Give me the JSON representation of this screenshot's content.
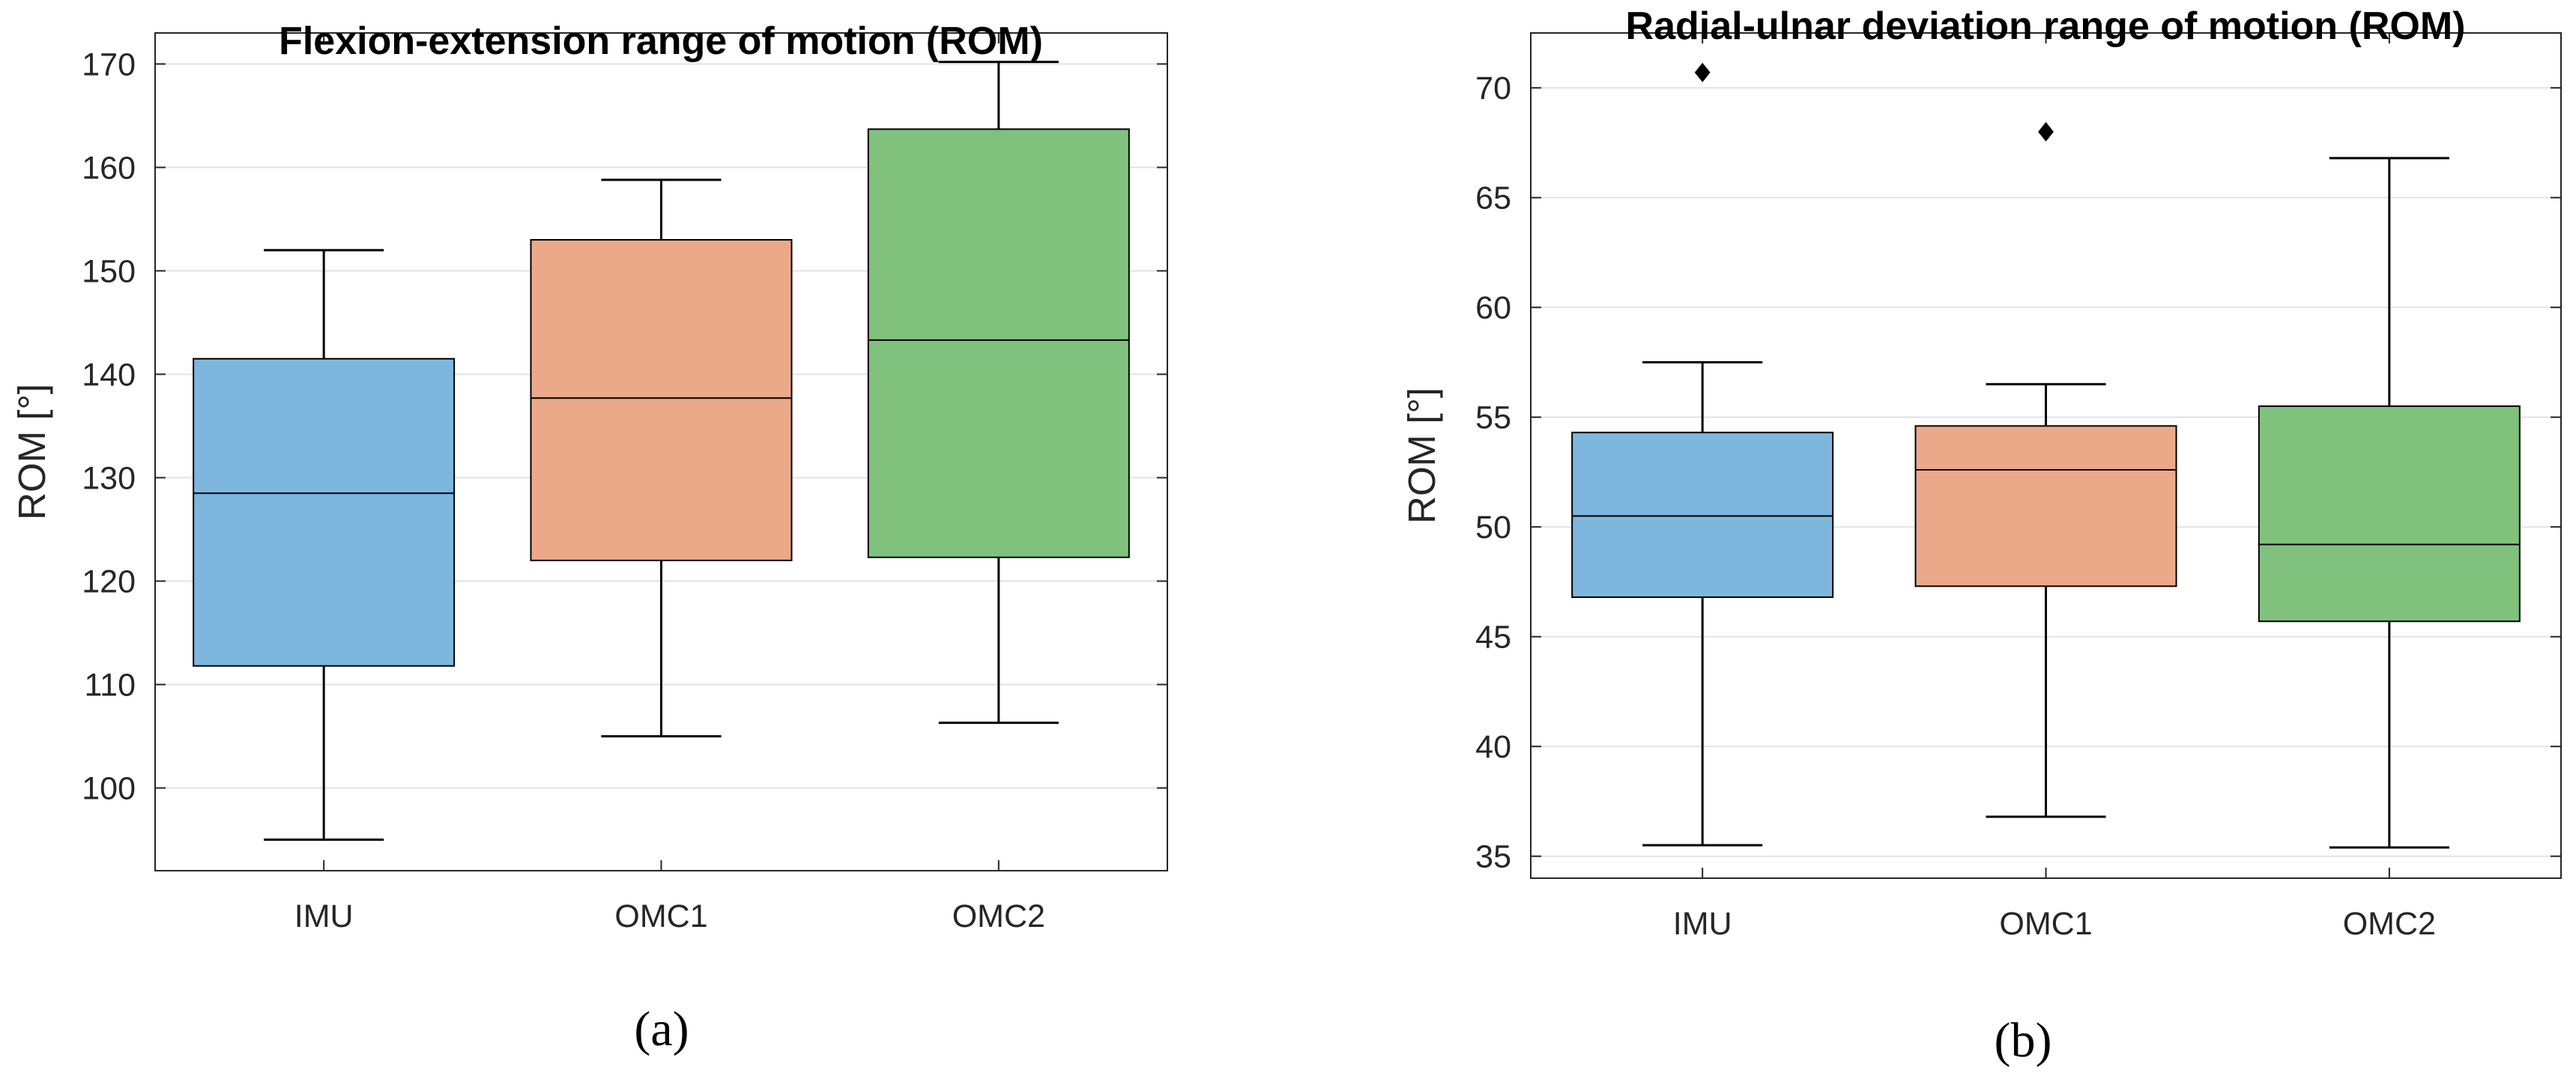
{
  "chart_data": [
    {
      "type": "box",
      "panel_label": "(a)",
      "title": "Flexion-extension range of motion (ROM)",
      "xlabel": "",
      "ylabel": "ROM  [°]",
      "ylim": [
        92,
        173
      ],
      "yticks": [
        100,
        110,
        120,
        130,
        140,
        150,
        160,
        170
      ],
      "grid": true,
      "categories": [
        "IMU",
        "OMC1",
        "OMC2"
      ],
      "colors": [
        "#7eb7de",
        "#eba98a",
        "#80c17d"
      ],
      "boxes": [
        {
          "category": "IMU",
          "whisker_low": 95.0,
          "q1": 111.8,
          "median": 128.5,
          "q3": 141.5,
          "whisker_high": 152.0,
          "outliers": []
        },
        {
          "category": "OMC1",
          "whisker_low": 105.0,
          "q1": 122.0,
          "median": 137.7,
          "q3": 153.0,
          "whisker_high": 158.8,
          "outliers": []
        },
        {
          "category": "OMC2",
          "whisker_low": 106.3,
          "q1": 122.3,
          "median": 143.3,
          "q3": 163.7,
          "whisker_high": 170.2,
          "outliers": []
        }
      ]
    },
    {
      "type": "box",
      "panel_label": "(b)",
      "title": "Radial-ulnar deviation range of motion (ROM)",
      "xlabel": "",
      "ylabel": "ROM  [°]",
      "ylim": [
        34,
        72.5
      ],
      "yticks": [
        35,
        40,
        45,
        50,
        55,
        60,
        65,
        70
      ],
      "grid": true,
      "categories": [
        "IMU",
        "OMC1",
        "OMC2"
      ],
      "colors": [
        "#7eb7de",
        "#eba98a",
        "#80c17d"
      ],
      "boxes": [
        {
          "category": "IMU",
          "whisker_low": 35.5,
          "q1": 46.8,
          "median": 50.5,
          "q3": 54.3,
          "whisker_high": 57.5,
          "outliers": [
            70.7
          ]
        },
        {
          "category": "OMC1",
          "whisker_low": 36.8,
          "q1": 47.3,
          "median": 52.6,
          "q3": 54.6,
          "whisker_high": 56.5,
          "outliers": [
            68.0
          ]
        },
        {
          "category": "OMC2",
          "whisker_low": 35.4,
          "q1": 45.7,
          "median": 49.2,
          "q3": 55.5,
          "whisker_high": 66.8,
          "outliers": []
        }
      ]
    }
  ]
}
